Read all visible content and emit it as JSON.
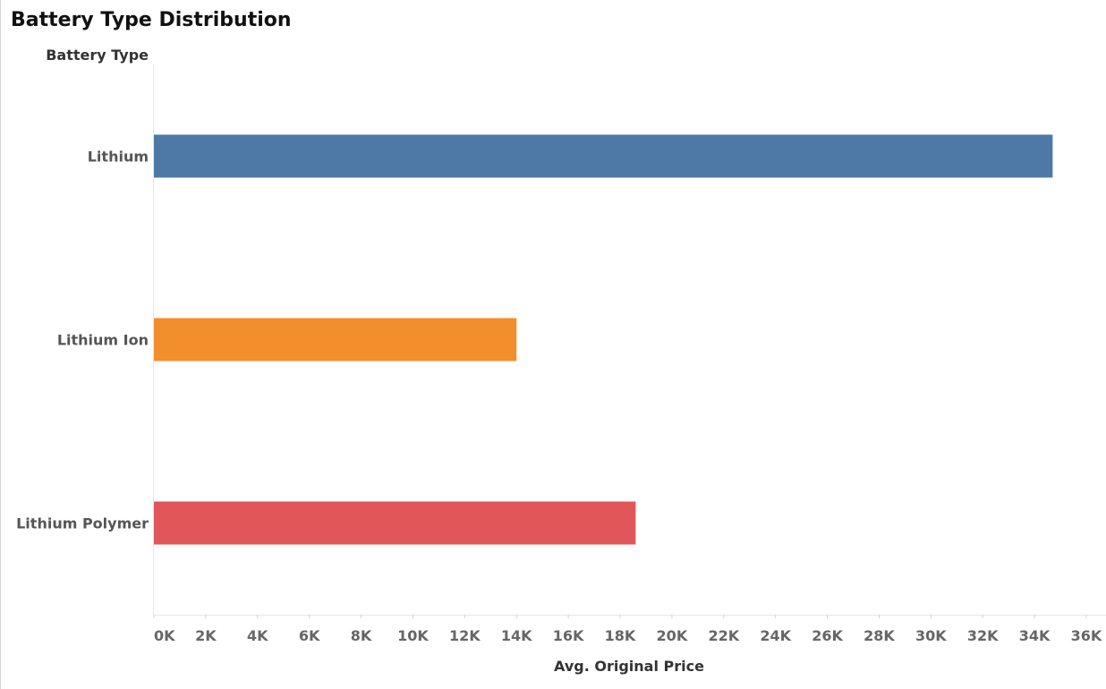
{
  "chart_data": {
    "type": "bar",
    "orientation": "horizontal",
    "title": "Battery Type Distribution",
    "row_header": "Battery Type",
    "xlabel": "Avg. Original Price",
    "categories": [
      "Lithium",
      "Lithium Ion",
      "Lithium Polymer"
    ],
    "values": [
      34700,
      14000,
      18600
    ],
    "colors": [
      "#4e79a7",
      "#f28e2b",
      "#e15759"
    ],
    "xlim": [
      0,
      36000
    ],
    "x_ticks": [
      0,
      2000,
      4000,
      6000,
      8000,
      10000,
      12000,
      14000,
      16000,
      18000,
      20000,
      22000,
      24000,
      26000,
      28000,
      30000,
      32000,
      34000,
      36000
    ],
    "x_tick_labels": [
      "0K",
      "2K",
      "4K",
      "6K",
      "8K",
      "10K",
      "12K",
      "14K",
      "16K",
      "18K",
      "20K",
      "22K",
      "24K",
      "26K",
      "28K",
      "30K",
      "32K",
      "34K",
      "36K"
    ],
    "grid": false,
    "legend": "none"
  }
}
